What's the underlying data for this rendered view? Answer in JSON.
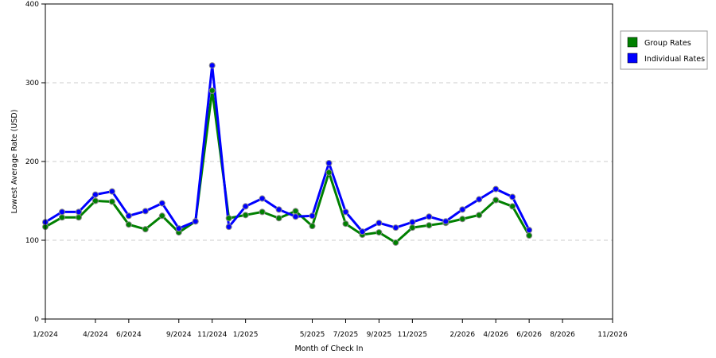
{
  "chart_data": {
    "type": "line",
    "title": "",
    "xlabel": "Month of Check In",
    "ylabel": "Lowest Average Rate (USD)",
    "ylim": [
      0,
      400
    ],
    "yticks": [
      0,
      100,
      200,
      300,
      400
    ],
    "grid": true,
    "legend_position": "right",
    "x_tick_labels": [
      {
        "index": 0,
        "label": "1/2024"
      },
      {
        "index": 3,
        "label": "4/2024"
      },
      {
        "index": 5,
        "label": "6/2024"
      },
      {
        "index": 8,
        "label": "9/2024"
      },
      {
        "index": 10,
        "label": "11/2024"
      },
      {
        "index": 12,
        "label": "1/2025"
      },
      {
        "index": 16,
        "label": "5/2025"
      },
      {
        "index": 18,
        "label": "7/2025"
      },
      {
        "index": 20,
        "label": "9/2025"
      },
      {
        "index": 22,
        "label": "11/2025"
      },
      {
        "index": 25,
        "label": "2/2026"
      },
      {
        "index": 27,
        "label": "4/2026"
      },
      {
        "index": 29,
        "label": "6/2026"
      },
      {
        "index": 31,
        "label": "8/2026"
      },
      {
        "index": 34,
        "label": "11/2026"
      }
    ],
    "x_count": 30,
    "series": [
      {
        "name": "Group Rates",
        "color": "#008000",
        "points": [
          {
            "i": 0,
            "v": 117
          },
          {
            "i": 1,
            "v": 129
          },
          {
            "i": 2,
            "v": 129
          },
          {
            "i": 3,
            "v": 150
          },
          {
            "i": 4,
            "v": 149
          },
          {
            "i": 5,
            "v": 120
          },
          {
            "i": 6,
            "v": 114
          },
          {
            "i": 7,
            "v": 131
          },
          {
            "i": 8,
            "v": 110
          },
          {
            "i": 9,
            "v": 124
          },
          {
            "i": 10,
            "v": 290
          },
          {
            "i": 11,
            "v": 128
          },
          {
            "i": 12,
            "v": 132
          },
          {
            "i": 13,
            "v": 136
          },
          {
            "i": 14,
            "v": 128
          },
          {
            "i": 15,
            "v": 137
          },
          {
            "i": 16,
            "v": 118
          },
          {
            "i": 17,
            "v": 186
          },
          {
            "i": 18,
            "v": 121
          },
          {
            "i": 19,
            "v": 107
          },
          {
            "i": 20,
            "v": 110
          },
          {
            "i": 21,
            "v": 97
          },
          {
            "i": 22,
            "v": 116
          },
          {
            "i": 23,
            "v": 119
          },
          {
            "i": 24,
            "v": 122
          },
          {
            "i": 25,
            "v": 127
          },
          {
            "i": 26,
            "v": 132
          },
          {
            "i": 27,
            "v": 151
          },
          {
            "i": 28,
            "v": 143
          },
          {
            "i": 29,
            "v": 106
          }
        ]
      },
      {
        "name": "Individual Rates",
        "color": "#0000ff",
        "points": [
          {
            "i": 0,
            "v": 123
          },
          {
            "i": 1,
            "v": 136
          },
          {
            "i": 2,
            "v": 136
          },
          {
            "i": 3,
            "v": 158
          },
          {
            "i": 4,
            "v": 162
          },
          {
            "i": 5,
            "v": 131
          },
          {
            "i": 6,
            "v": 137
          },
          {
            "i": 7,
            "v": 147
          },
          {
            "i": 8,
            "v": 115
          },
          {
            "i": 9,
            "v": 124
          },
          {
            "i": 10,
            "v": 322
          },
          {
            "i": 11,
            "v": 117
          },
          {
            "i": 12,
            "v": 143
          },
          {
            "i": 13,
            "v": 153
          },
          {
            "i": 14,
            "v": 139
          },
          {
            "i": 15,
            "v": 130
          },
          {
            "i": 16,
            "v": 131
          },
          {
            "i": 17,
            "v": 198
          },
          {
            "i": 18,
            "v": 136
          },
          {
            "i": 19,
            "v": 111
          },
          {
            "i": 20,
            "v": 122
          },
          {
            "i": 21,
            "v": 116
          },
          {
            "i": 22,
            "v": 123
          },
          {
            "i": 23,
            "v": 130
          },
          {
            "i": 24,
            "v": 124
          },
          {
            "i": 25,
            "v": 139
          },
          {
            "i": 26,
            "v": 152
          },
          {
            "i": 27,
            "v": 165
          },
          {
            "i": 28,
            "v": 155
          },
          {
            "i": 29,
            "v": 113
          }
        ]
      }
    ]
  }
}
